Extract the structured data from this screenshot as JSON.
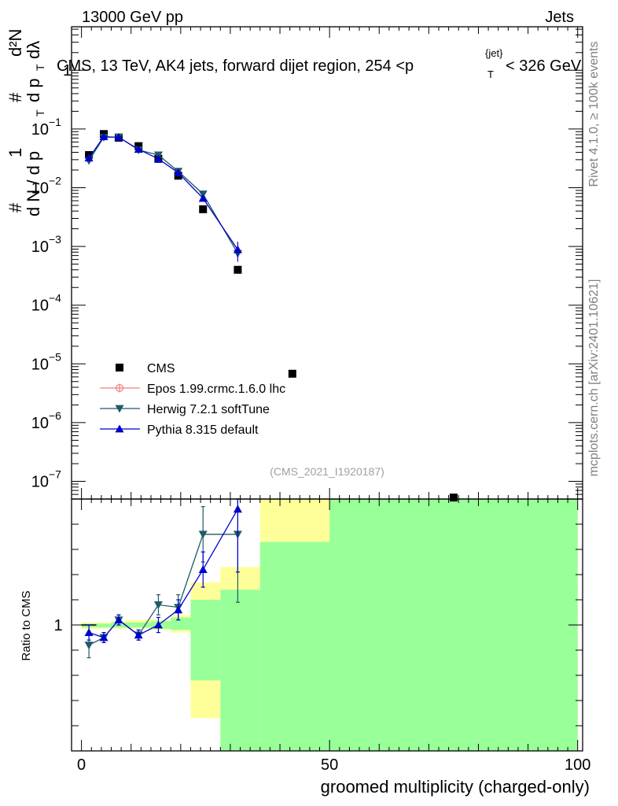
{
  "header": {
    "left": "13000 GeV pp",
    "right": "Jets"
  },
  "side_labels": {
    "rivet": "Rivet 4.1.0, ≥ 100k events",
    "mcplots": "mcplots.cern.ch [arXiv:2401.10621]"
  },
  "chart_data": {
    "type": "scatter",
    "title": "CMS, 13 TeV, AK4 jets, forward dijet region, 254 <p_T^{jet}< 326 GeV",
    "title_parts": {
      "pre": "CMS, 13 TeV, AK4 jets, forward dijet region, 254 <p",
      "sup": "{jet}",
      "sub": "T",
      "post": "< 326 GeV"
    },
    "ylabel_main": "1/dN/dp_T  d²N/dp_T dλ",
    "ylabel_parts": {
      "hash": "#",
      "one": "1",
      "dN": "d N / d p",
      "T": "T",
      "d2N": "d²N",
      "dpdl": "d p",
      "lambda": "dλ"
    },
    "xlabel": "groomed multiplicity (charged-only)",
    "ylabel_ratio": "Ratio to CMS",
    "analysis_id": "(CMS_2021_I1920187)",
    "xlim": [
      -2,
      101
    ],
    "ylim_main": [
      5e-08,
      5.5
    ],
    "ylim_ratio": [
      0.5,
      1.5
    ],
    "main_ytick_labels": [
      {
        "value": 1,
        "label": "1",
        "sup": ""
      },
      {
        "value": 0.1,
        "label": "10",
        "sup": "−1"
      },
      {
        "value": 0.01,
        "label": "10",
        "sup": "−2"
      },
      {
        "value": 0.001,
        "label": "10",
        "sup": "−3"
      },
      {
        "value": 0.0001,
        "label": "10",
        "sup": "−4"
      },
      {
        "value": 1e-05,
        "label": "10",
        "sup": "−5"
      },
      {
        "value": 1e-06,
        "label": "10",
        "sup": "−6"
      },
      {
        "value": 1e-07,
        "label": "10",
        "sup": "−7"
      }
    ],
    "ratio_ytick_labels": [
      {
        "value": 1,
        "label": "1"
      }
    ],
    "xtick_labels": [
      {
        "value": 0,
        "label": "0"
      },
      {
        "value": 50,
        "label": "50"
      },
      {
        "value": 100,
        "label": "100"
      }
    ],
    "legend": {
      "placement": "lower-left",
      "entries": [
        {
          "name": "CMS",
          "color": "#000000",
          "marker": "square"
        },
        {
          "name": "Epos 1.99.crmc.1.6.0 lhc",
          "color": "#f08080",
          "marker": "circle-cross"
        },
        {
          "name": "Herwig 7.2.1 softTune",
          "color": "#1f5c66",
          "marker": "triangle-down"
        },
        {
          "name": "Pythia 8.315 default",
          "color": "#0000cc",
          "marker": "triangle-up"
        }
      ]
    },
    "series": [
      {
        "name": "CMS",
        "color": "#000000",
        "marker": "square",
        "x": [
          1.5,
          4.5,
          7.5,
          11.5,
          15.5,
          19.5,
          24.5,
          31.5,
          42.5,
          75
        ],
        "y": [
          0.036,
          0.082,
          0.071,
          0.051,
          0.031,
          0.016,
          0.0043,
          0.0004,
          6.8e-06,
          5.3e-08
        ]
      },
      {
        "name": "Herwig 7.2.1 softTune",
        "color": "#1f5c66",
        "marker": "triangle-down",
        "x": [
          1.5,
          4.5,
          7.5,
          11.5,
          15.5,
          19.5,
          24.5,
          31.5
        ],
        "y": [
          0.029,
          0.072,
          0.073,
          0.044,
          0.036,
          0.019,
          0.0078,
          0.00076
        ]
      },
      {
        "name": "Pythia 8.315 default",
        "color": "#0000cc",
        "marker": "triangle-up",
        "x": [
          1.5,
          4.5,
          7.5,
          11.5,
          15.5,
          19.5,
          24.5,
          31.5
        ],
        "y": [
          0.032,
          0.074,
          0.072,
          0.045,
          0.031,
          0.018,
          0.0066,
          0.00088
        ]
      }
    ],
    "ratio_series": [
      {
        "name": "Herwig 7.2.1 softTune",
        "color": "#1f5c66",
        "marker": "triangle-down",
        "x": [
          1.5,
          4.5,
          7.5,
          11.5,
          15.5,
          19.5,
          24.5,
          31.5
        ],
        "y": [
          0.92,
          0.95,
          1.02,
          0.96,
          1.08,
          1.07,
          1.36,
          1.36
        ],
        "err": [
          0.05,
          0.02,
          0.02,
          0.02,
          0.04,
          0.05,
          0.11,
          0.27
        ]
      },
      {
        "name": "Pythia 8.315 default",
        "color": "#0000cc",
        "marker": "triangle-up",
        "x": [
          1.5,
          4.5,
          7.5,
          11.5,
          15.5,
          19.5,
          24.5,
          31.5
        ],
        "y": [
          0.97,
          0.95,
          1.02,
          0.96,
          1.0,
          1.06,
          1.22,
          1.46
        ],
        "err": [
          0.03,
          0.02,
          0.02,
          0.02,
          0.03,
          0.04,
          0.07,
          0.25
        ]
      }
    ],
    "uncertainty_bands": [
      {
        "x0": 0,
        "x1": 3,
        "yellow": [
          0.985,
          1.01
        ],
        "green": [
          0.99,
          1.005
        ]
      },
      {
        "x0": 3,
        "x1": 6,
        "yellow": [
          0.985,
          1.01
        ],
        "green": [
          0.99,
          1.005
        ]
      },
      {
        "x0": 6,
        "x1": 9,
        "yellow": [
          0.985,
          1.015
        ],
        "green": [
          0.99,
          1.01
        ]
      },
      {
        "x0": 9,
        "x1": 14,
        "yellow": [
          0.985,
          1.02
        ],
        "green": [
          0.99,
          1.01
        ]
      },
      {
        "x0": 14,
        "x1": 18,
        "yellow": [
          0.98,
          1.02
        ],
        "green": [
          0.985,
          1.015
        ]
      },
      {
        "x0": 18,
        "x1": 22,
        "yellow": [
          0.97,
          1.04
        ],
        "green": [
          0.98,
          1.03
        ]
      },
      {
        "x0": 22,
        "x1": 28,
        "yellow": [
          0.63,
          1.17
        ],
        "green": [
          0.78,
          1.1
        ]
      },
      {
        "x0": 28,
        "x1": 36,
        "yellow": [
          0.5,
          1.23
        ],
        "green": [
          0.5,
          1.14
        ]
      },
      {
        "x0": 36,
        "x1": 50,
        "yellow": [
          0.5,
          1.5
        ],
        "green": [
          0.5,
          1.33
        ]
      },
      {
        "x0": 50,
        "x1": 100,
        "yellow": [
          0.5,
          1.5
        ],
        "green": [
          0.5,
          1.5
        ]
      }
    ]
  }
}
